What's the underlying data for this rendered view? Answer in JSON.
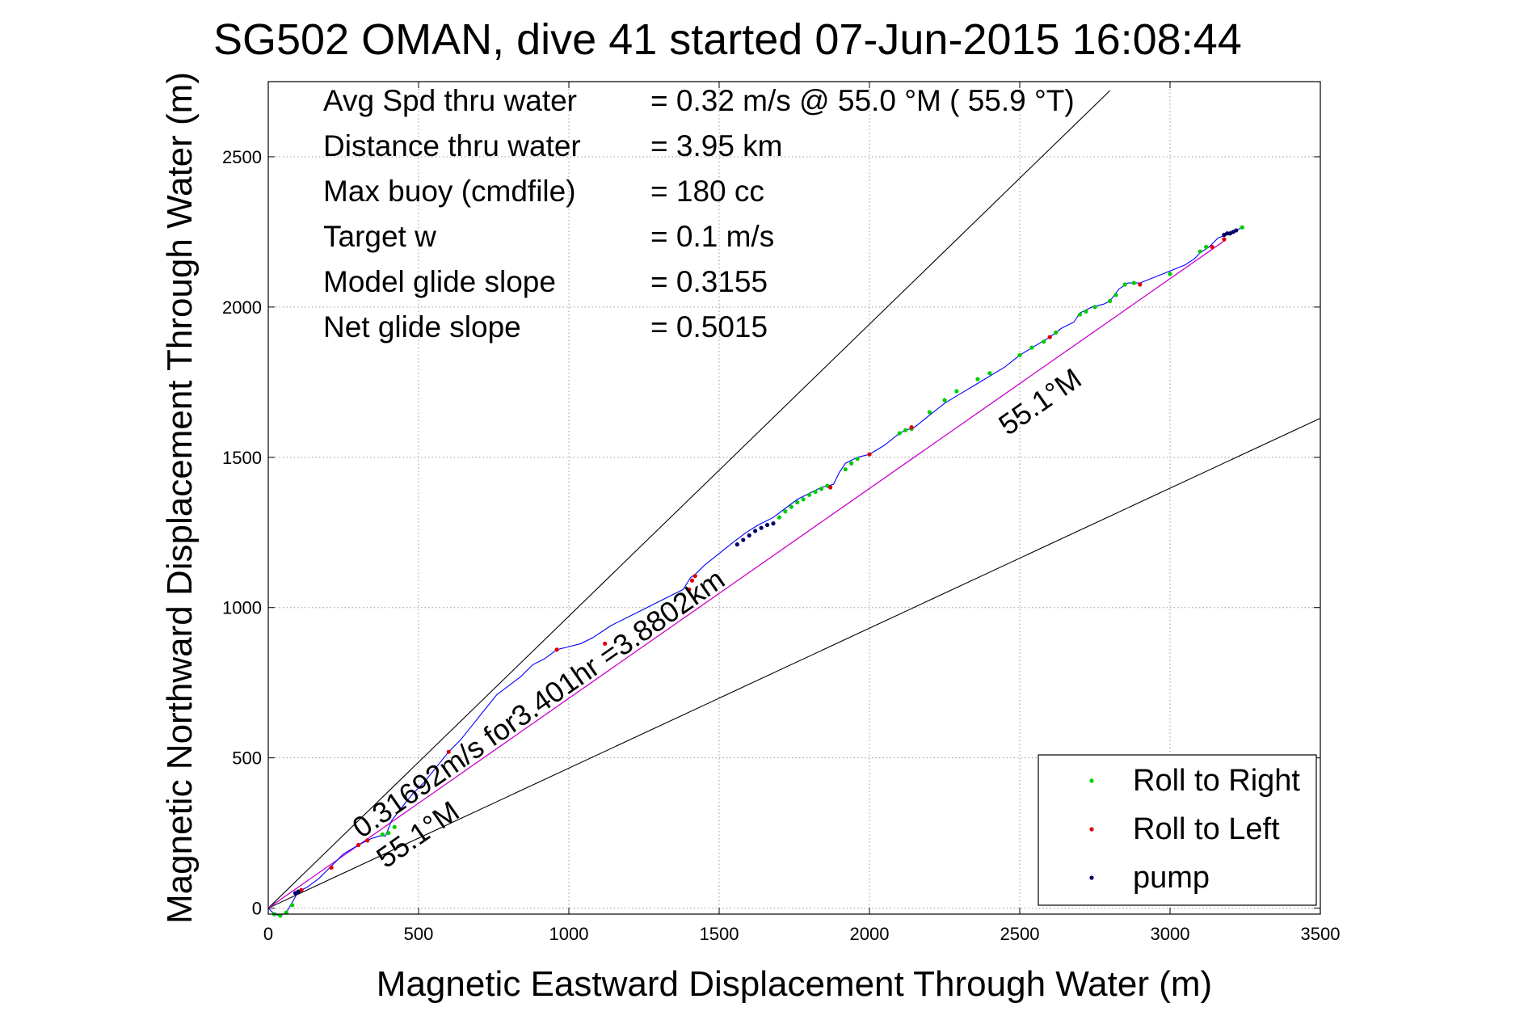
{
  "chart_data": {
    "type": "scatter",
    "title": "SG502 OMAN, dive 41 started 07-Jun-2015 16:08:44",
    "xlabel": "Magnetic Eastward Displacement Through Water (m)",
    "ylabel": "Magnetic Northward Displacement Through Water (m)",
    "xlim": [
      0,
      3500
    ],
    "ylim": [
      -20,
      2750
    ],
    "xticks": [
      0,
      500,
      1000,
      1500,
      2000,
      2500,
      3000,
      3500
    ],
    "yticks": [
      0,
      500,
      1000,
      1500,
      2000,
      2500
    ],
    "grid": true,
    "legend_position": "bottom-right",
    "info_lines": [
      {
        "label": "Avg Spd thru water",
        "value": "=  0.32 m/s @  55.0 °M ( 55.9 °T)"
      },
      {
        "label": "Distance thru water",
        "value": "=  3.95 km"
      },
      {
        "label": "Max buoy (cmdfile)",
        "value": "= 180 cc"
      },
      {
        "label": "Target w",
        "value": "= 0.1 m/s"
      },
      {
        "label": "Model glide slope",
        "value": "= 0.3155"
      },
      {
        "label": "Net glide slope",
        "value": "= 0.5015"
      }
    ],
    "reference_lines": [
      {
        "from": [
          0,
          0
        ],
        "to": [
          2800,
          2720
        ],
        "color": "#000000"
      },
      {
        "from": [
          0,
          0
        ],
        "to": [
          3500,
          1630
        ],
        "color": "#000000"
      }
    ],
    "net_track": {
      "from": [
        0,
        0
      ],
      "to": [
        3180,
        2220
      ],
      "color": "#cc00cc"
    },
    "annotations": [
      {
        "text": "0.31692m/s for3.401hr =3.8802km",
        "at": [
          310,
          230
        ],
        "angle_deg": -34.9
      },
      {
        "text": "55.1°M",
        "at": [
          390,
          130
        ],
        "angle_deg": -34.9
      },
      {
        "text": "55.1°M",
        "at": [
          2460,
          1570
        ],
        "angle_deg": -34.9
      }
    ],
    "track": {
      "color": "#0000ff",
      "x": [
        0,
        20,
        40,
        60,
        80,
        100,
        130,
        170,
        210,
        250,
        300,
        340,
        370,
        390,
        410,
        440,
        480,
        520,
        560,
        600,
        640,
        680,
        720,
        760,
        800,
        840,
        880,
        920,
        960,
        1000,
        1040,
        1080,
        1110,
        1140,
        1180,
        1220,
        1260,
        1300,
        1340,
        1380,
        1405,
        1420,
        1450,
        1500,
        1550,
        1590,
        1630,
        1680,
        1720,
        1760,
        1800,
        1840,
        1880,
        1900,
        1920,
        1960,
        2000,
        2050,
        2100,
        2120,
        2150,
        2200,
        2250,
        2300,
        2350,
        2400,
        2450,
        2500,
        2550,
        2600,
        2640,
        2680,
        2700,
        2740,
        2780,
        2800,
        2830,
        2860,
        2900,
        2950,
        3000,
        3050,
        3080,
        3100,
        3130,
        3160,
        3200,
        3240
      ],
      "y": [
        0,
        -20,
        -25,
        -15,
        20,
        55,
        70,
        100,
        140,
        180,
        210,
        230,
        240,
        240,
        290,
        330,
        380,
        420,
        470,
        520,
        560,
        610,
        660,
        710,
        740,
        770,
        810,
        830,
        860,
        870,
        880,
        900,
        920,
        940,
        960,
        980,
        1000,
        1020,
        1040,
        1060,
        1100,
        1110,
        1140,
        1180,
        1220,
        1250,
        1275,
        1300,
        1330,
        1360,
        1380,
        1400,
        1410,
        1450,
        1480,
        1500,
        1510,
        1540,
        1580,
        1590,
        1600,
        1640,
        1680,
        1710,
        1740,
        1770,
        1800,
        1840,
        1870,
        1900,
        1930,
        1950,
        1980,
        2000,
        2010,
        2020,
        2060,
        2080,
        2080,
        2100,
        2120,
        2140,
        2160,
        2180,
        2200,
        2230,
        2245,
        2265
      ]
    },
    "series": [
      {
        "name": "Roll to Right",
        "color": "#00cc00",
        "x": [
          20,
          40,
          60,
          80,
          380,
          400,
          420,
          1700,
          1720,
          1740,
          1760,
          1780,
          1800,
          1820,
          1840,
          1860,
          1920,
          1940,
          1960,
          2100,
          2120,
          2140,
          2200,
          2250,
          2290,
          2360,
          2400,
          2500,
          2540,
          2580,
          2620,
          2700,
          2720,
          2750,
          2800,
          2820,
          2850,
          2880,
          3000,
          3100,
          3120,
          3200,
          3240
        ],
        "y": [
          -20,
          -25,
          -15,
          10,
          245,
          250,
          270,
          1300,
          1320,
          1335,
          1350,
          1360,
          1375,
          1385,
          1395,
          1405,
          1460,
          1480,
          1495,
          1580,
          1590,
          1595,
          1650,
          1690,
          1720,
          1760,
          1780,
          1840,
          1865,
          1885,
          1915,
          1975,
          1985,
          2000,
          2020,
          2040,
          2075,
          2080,
          2110,
          2185,
          2200,
          2245,
          2265
        ]
      },
      {
        "name": "Roll to Left",
        "color": "#dd0000",
        "x": [
          110,
          210,
          300,
          330,
          600,
          960,
          1120,
          1400,
          1410,
          1420,
          1870,
          2000,
          2140,
          2600,
          2900,
          3140,
          3180
        ],
        "y": [
          60,
          135,
          210,
          225,
          520,
          860,
          880,
          1060,
          1090,
          1105,
          1400,
          1510,
          1600,
          1900,
          2075,
          2200,
          2225
        ]
      },
      {
        "name": "pump",
        "color": "#000066",
        "x": [
          90,
          100,
          1560,
          1580,
          1600,
          1620,
          1640,
          1660,
          1680,
          3180,
          3190,
          3200,
          3210,
          3220
        ],
        "y": [
          50,
          55,
          1210,
          1225,
          1240,
          1255,
          1265,
          1275,
          1280,
          2240,
          2245,
          2245,
          2250,
          2255
        ]
      }
    ]
  }
}
